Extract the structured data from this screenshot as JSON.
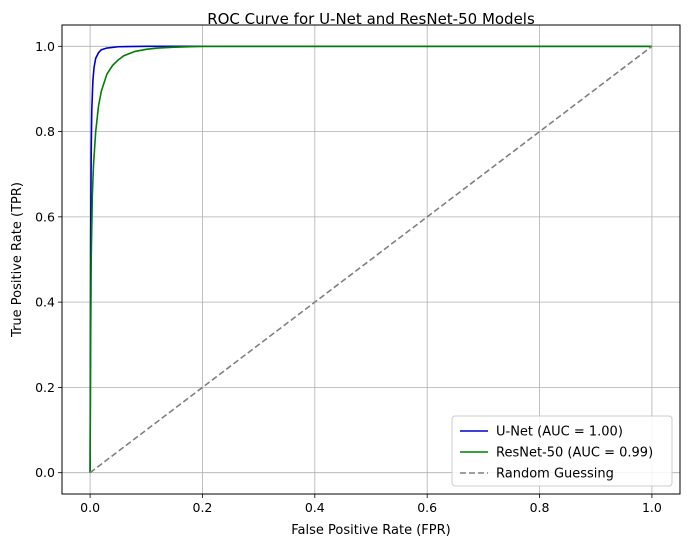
{
  "chart_data": {
    "type": "line",
    "title": "ROC Curve for U-Net and ResNet-50 Models",
    "xlabel": "False Positive Rate (FPR)",
    "ylabel": "True Positive Rate (TPR)",
    "xlim": [
      -0.05,
      1.05
    ],
    "ylim": [
      -0.05,
      1.05
    ],
    "xticks": [
      0.0,
      0.2,
      0.4,
      0.6,
      0.8,
      1.0
    ],
    "yticks": [
      0.0,
      0.2,
      0.4,
      0.6,
      0.8,
      1.0
    ],
    "xtick_labels": [
      "0.0",
      "0.2",
      "0.4",
      "0.6",
      "0.8",
      "1.0"
    ],
    "ytick_labels": [
      "0.0",
      "0.2",
      "0.4",
      "0.6",
      "0.8",
      "1.0"
    ],
    "grid": true,
    "legend_position": "bottom-right",
    "series": [
      {
        "name": "U-Net (AUC = 1.00)",
        "color": "#0000cc",
        "style": "solid",
        "x": [
          0,
          0.001,
          0.002,
          0.003,
          0.005,
          0.007,
          0.01,
          0.015,
          0.02,
          0.03,
          0.05,
          0.1,
          0.2,
          1.0
        ],
        "y": [
          0,
          0.55,
          0.75,
          0.85,
          0.92,
          0.95,
          0.972,
          0.985,
          0.992,
          0.996,
          0.999,
          1.0,
          1.0,
          1.0
        ]
      },
      {
        "name": "ResNet-50 (AUC = 0.99)",
        "color": "#008000",
        "style": "solid",
        "x": [
          0,
          0.001,
          0.002,
          0.004,
          0.006,
          0.01,
          0.015,
          0.02,
          0.03,
          0.04,
          0.05,
          0.06,
          0.08,
          0.1,
          0.12,
          0.15,
          0.2,
          1.0
        ],
        "y": [
          0,
          0.3,
          0.5,
          0.65,
          0.72,
          0.8,
          0.86,
          0.895,
          0.935,
          0.955,
          0.968,
          0.978,
          0.988,
          0.993,
          0.996,
          0.998,
          1.0,
          1.0
        ]
      },
      {
        "name": "Random Guessing",
        "color": "#808080",
        "style": "dashed",
        "x": [
          0,
          1
        ],
        "y": [
          0,
          1
        ]
      }
    ]
  }
}
